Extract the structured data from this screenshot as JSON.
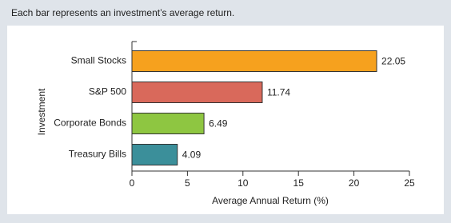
{
  "chart_data": {
    "type": "bar",
    "orientation": "horizontal",
    "title": "Each bar represents an investment’s average return.",
    "categories": [
      "Small Stocks",
      "S&P 500",
      "Corporate Bonds",
      "Treasury Bills"
    ],
    "values": [
      22.05,
      11.74,
      6.49,
      4.09
    ],
    "colors": [
      "#f6a11e",
      "#d9695b",
      "#8ec641",
      "#3b8f9a"
    ],
    "xlim": [
      0,
      25
    ],
    "xticks": [
      0,
      5,
      10,
      15,
      20,
      25
    ],
    "xlabel": "Average Annual Return (%)",
    "ylabel": "Investment"
  }
}
